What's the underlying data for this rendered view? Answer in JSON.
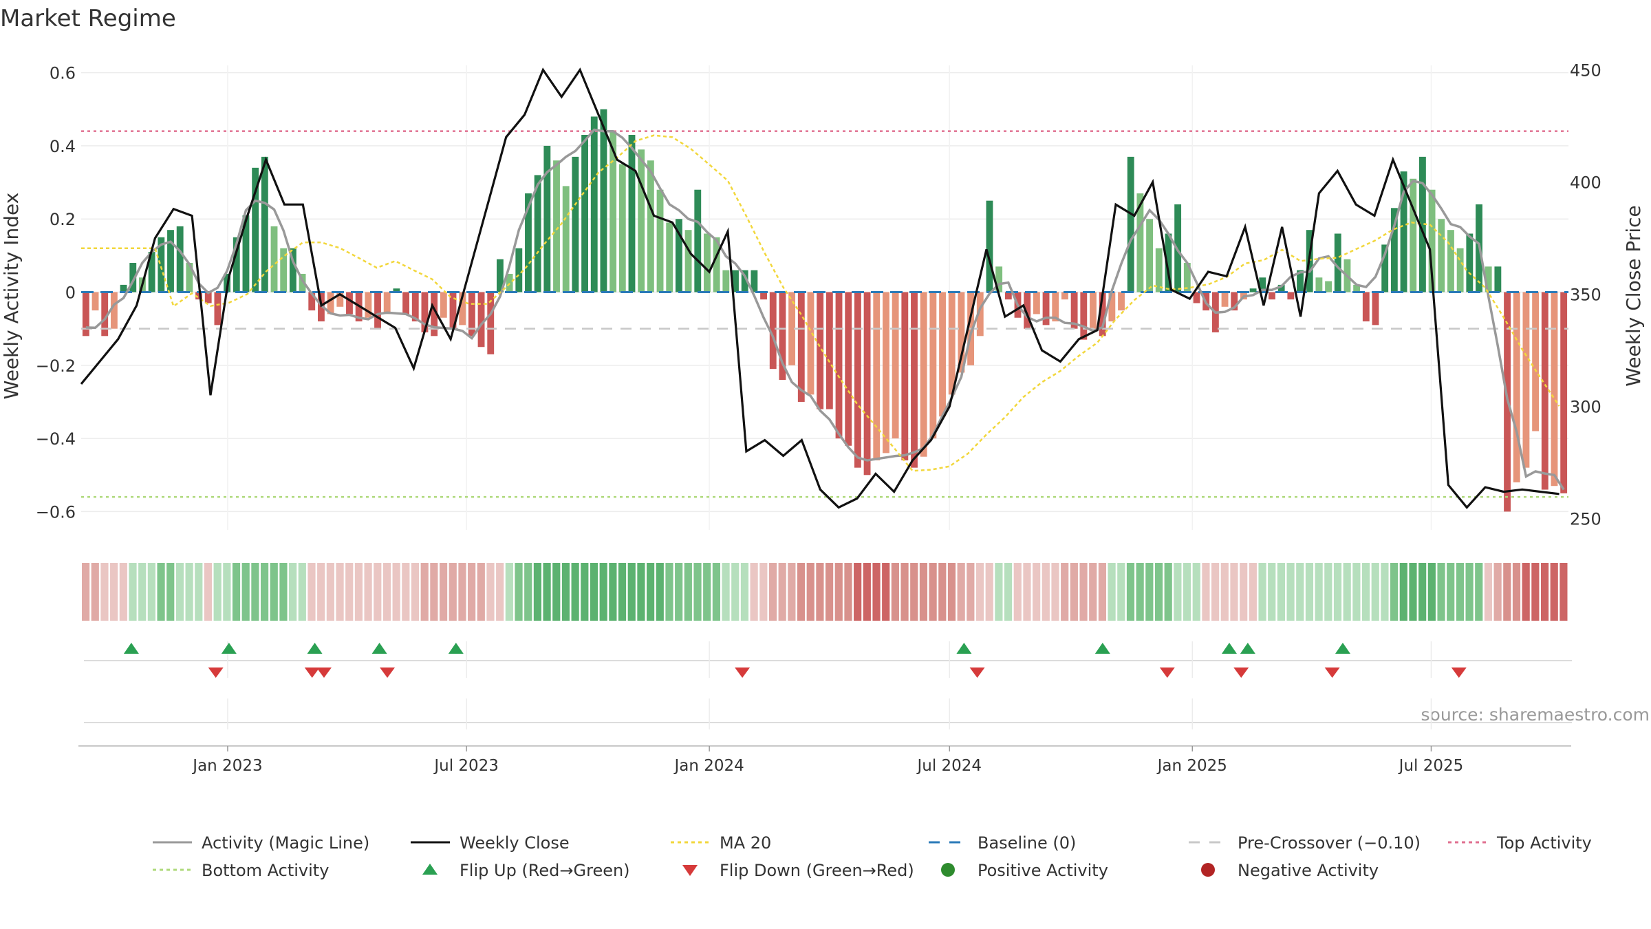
{
  "page": {
    "title": "Market Regime",
    "source": "source: sharemaestro.com"
  },
  "chart_data": {
    "type": "bar",
    "title": "Market Regime",
    "ylabel_left": "Weekly Activity Index",
    "ylabel_right": "Weekly Close Price",
    "ylim_left": [
      -0.65,
      0.62
    ],
    "ylim_right": [
      245,
      452
    ],
    "yticks_left": [
      "0.6",
      "0.4",
      "0.2",
      "0",
      "−0.2",
      "−0.4",
      "−0.6"
    ],
    "yticks_right": [
      "450",
      "400",
      "350",
      "300",
      "250"
    ],
    "x_tick_labels": [
      "Jan 2023",
      "Jul 2023",
      "Jan 2024",
      "Jul 2024",
      "Jan 2025",
      "Jul 2025"
    ],
    "x_tick_dates": [
      "2023-01-01",
      "2023-07-01",
      "2024-01-01",
      "2024-07-01",
      "2025-01-01",
      "2025-07-01"
    ],
    "date_range": [
      "2022-09-12",
      "2025-10-13"
    ],
    "weekly_close": [
      {
        "date": "2022-09-12",
        "value": 310
      },
      {
        "date": "2022-09-26",
        "value": 320
      },
      {
        "date": "2022-10-10",
        "value": 330
      },
      {
        "date": "2022-10-24",
        "value": 345
      },
      {
        "date": "2022-11-07",
        "value": 375
      },
      {
        "date": "2022-11-21",
        "value": 388
      },
      {
        "date": "2022-12-05",
        "value": 385
      },
      {
        "date": "2022-12-19",
        "value": 305
      },
      {
        "date": "2023-01-02",
        "value": 358
      },
      {
        "date": "2023-01-16",
        "value": 385
      },
      {
        "date": "2023-01-30",
        "value": 410
      },
      {
        "date": "2023-02-13",
        "value": 390
      },
      {
        "date": "2023-02-27",
        "value": 390
      },
      {
        "date": "2023-03-13",
        "value": 345
      },
      {
        "date": "2023-03-27",
        "value": 350
      },
      {
        "date": "2023-04-10",
        "value": 345
      },
      {
        "date": "2023-04-24",
        "value": 340
      },
      {
        "date": "2023-05-08",
        "value": 335
      },
      {
        "date": "2023-05-22",
        "value": 317
      },
      {
        "date": "2023-06-05",
        "value": 345
      },
      {
        "date": "2023-06-19",
        "value": 330
      },
      {
        "date": "2023-07-03",
        "value": 360
      },
      {
        "date": "2023-07-17",
        "value": 390
      },
      {
        "date": "2023-07-31",
        "value": 420
      },
      {
        "date": "2023-08-14",
        "value": 430
      },
      {
        "date": "2023-08-28",
        "value": 450
      },
      {
        "date": "2023-09-11",
        "value": 438
      },
      {
        "date": "2023-09-25",
        "value": 450
      },
      {
        "date": "2023-10-09",
        "value": 430
      },
      {
        "date": "2023-10-23",
        "value": 410
      },
      {
        "date": "2023-11-06",
        "value": 405
      },
      {
        "date": "2023-11-20",
        "value": 385
      },
      {
        "date": "2023-12-04",
        "value": 382
      },
      {
        "date": "2023-12-18",
        "value": 368
      },
      {
        "date": "2024-01-01",
        "value": 360
      },
      {
        "date": "2024-01-15",
        "value": 378
      },
      {
        "date": "2024-01-29",
        "value": 280
      },
      {
        "date": "2024-02-12",
        "value": 285
      },
      {
        "date": "2024-02-26",
        "value": 278
      },
      {
        "date": "2024-03-11",
        "value": 285
      },
      {
        "date": "2024-03-25",
        "value": 263
      },
      {
        "date": "2024-04-08",
        "value": 255
      },
      {
        "date": "2024-04-22",
        "value": 259
      },
      {
        "date": "2024-05-06",
        "value": 270
      },
      {
        "date": "2024-05-20",
        "value": 262
      },
      {
        "date": "2024-06-03",
        "value": 276
      },
      {
        "date": "2024-06-17",
        "value": 285
      },
      {
        "date": "2024-07-01",
        "value": 300
      },
      {
        "date": "2024-07-15",
        "value": 335
      },
      {
        "date": "2024-07-29",
        "value": 370
      },
      {
        "date": "2024-08-12",
        "value": 340
      },
      {
        "date": "2024-08-26",
        "value": 345
      },
      {
        "date": "2024-09-09",
        "value": 325
      },
      {
        "date": "2024-09-23",
        "value": 320
      },
      {
        "date": "2024-10-07",
        "value": 330
      },
      {
        "date": "2024-10-21",
        "value": 334
      },
      {
        "date": "2024-11-04",
        "value": 390
      },
      {
        "date": "2024-11-18",
        "value": 385
      },
      {
        "date": "2024-12-02",
        "value": 400
      },
      {
        "date": "2024-12-16",
        "value": 352
      },
      {
        "date": "2024-12-30",
        "value": 348
      },
      {
        "date": "2025-01-13",
        "value": 360
      },
      {
        "date": "2025-01-27",
        "value": 358
      },
      {
        "date": "2025-02-10",
        "value": 380
      },
      {
        "date": "2025-02-24",
        "value": 345
      },
      {
        "date": "2025-03-10",
        "value": 380
      },
      {
        "date": "2025-03-24",
        "value": 340
      },
      {
        "date": "2025-04-07",
        "value": 395
      },
      {
        "date": "2025-04-21",
        "value": 405
      },
      {
        "date": "2025-05-05",
        "value": 390
      },
      {
        "date": "2025-05-19",
        "value": 385
      },
      {
        "date": "2025-06-02",
        "value": 410
      },
      {
        "date": "2025-06-16",
        "value": 390
      },
      {
        "date": "2025-06-30",
        "value": 370
      },
      {
        "date": "2025-07-14",
        "value": 265
      },
      {
        "date": "2025-07-28",
        "value": 255
      },
      {
        "date": "2025-08-11",
        "value": 264
      },
      {
        "date": "2025-08-25",
        "value": 262
      },
      {
        "date": "2025-09-08",
        "value": 263
      },
      {
        "date": "2025-09-22",
        "value": 262
      },
      {
        "date": "2025-10-06",
        "value": 261
      }
    ],
    "activity_weeks": [
      -0.12,
      -0.05,
      -0.12,
      -0.1,
      0.02,
      0.08,
      0.04,
      0.11,
      0.15,
      0.17,
      0.18,
      0.08,
      -0.02,
      -0.03,
      -0.09,
      0.05,
      0.15,
      0.21,
      0.34,
      0.37,
      0.18,
      0.12,
      0.12,
      0.05,
      -0.05,
      -0.08,
      -0.06,
      -0.04,
      -0.06,
      -0.08,
      -0.07,
      -0.1,
      -0.06,
      0.01,
      -0.06,
      -0.08,
      -0.11,
      -0.12,
      -0.07,
      -0.1,
      -0.09,
      -0.12,
      -0.15,
      -0.17,
      0.09,
      0.05,
      0.12,
      0.27,
      0.32,
      0.4,
      0.36,
      0.29,
      0.37,
      0.43,
      0.48,
      0.5,
      0.44,
      0.35,
      0.43,
      0.39,
      0.36,
      0.28,
      0.19,
      0.2,
      0.17,
      0.28,
      0.16,
      0.15,
      0.06,
      0.06,
      0.06,
      0.06,
      -0.02,
      -0.21,
      -0.24,
      -0.2,
      -0.3,
      -0.28,
      -0.32,
      -0.32,
      -0.4,
      -0.42,
      -0.48,
      -0.5,
      -0.46,
      -0.44,
      -0.4,
      -0.46,
      -0.48,
      -0.45,
      -0.4,
      -0.34,
      -0.28,
      -0.22,
      -0.2,
      -0.12,
      0.25,
      0.07,
      -0.02,
      -0.07,
      -0.1,
      -0.06,
      -0.09,
      -0.08,
      -0.02,
      -0.1,
      -0.13,
      -0.1,
      -0.12,
      -0.08,
      -0.05,
      0.37,
      0.27,
      0.2,
      0.12,
      0.16,
      0.24,
      0.08,
      -0.03,
      -0.05,
      -0.11,
      -0.04,
      -0.05,
      -0.02,
      0.01,
      0.04,
      -0.02,
      0.02,
      -0.02,
      0.06,
      0.17,
      0.04,
      0.03,
      0.16,
      0.09,
      0.02,
      -0.08,
      -0.09,
      0.13,
      0.23,
      0.33,
      0.31,
      0.37,
      0.28,
      0.2,
      0.17,
      0.12,
      0.16,
      0.24,
      0.07,
      0.07,
      -0.6,
      -0.52,
      -0.48,
      -0.38,
      -0.54,
      -0.53,
      -0.55
    ],
    "series": [
      {
        "name": "Activity (Magic Line)",
        "color": "#999999"
      },
      {
        "name": "Weekly Close",
        "color": "#111111"
      },
      {
        "name": "MA 20",
        "color": "#f2d73c"
      }
    ],
    "reference_lines": [
      {
        "name": "Top Activity",
        "value": 0.44,
        "color": "#e07090"
      },
      {
        "name": "Bottom Activity",
        "value": -0.56,
        "color": "#aed97a"
      },
      {
        "name": "Pre-Crossover (−0.10)",
        "value": -0.1,
        "color": "#c8c8c8"
      },
      {
        "name": "Baseline (0)",
        "value": 0,
        "color": "#2a7ab8"
      }
    ],
    "flip_up_dates": [
      "2022-10-20",
      "2023-01-02",
      "2023-03-08",
      "2023-04-26",
      "2023-06-23",
      "2024-07-12",
      "2024-10-25",
      "2025-01-29",
      "2025-02-12",
      "2025-04-25"
    ],
    "flip_down_dates": [
      "2022-12-23",
      "2023-03-06",
      "2023-03-15",
      "2023-05-02",
      "2024-01-26",
      "2024-07-22",
      "2024-12-13",
      "2025-02-07",
      "2025-04-17",
      "2025-07-22"
    ],
    "legend": [
      {
        "label": "Activity (Magic Line)",
        "symbol": "line",
        "color": "#999999"
      },
      {
        "label": "Weekly Close",
        "symbol": "line",
        "color": "#111111"
      },
      {
        "label": "MA 20",
        "symbol": "dotted",
        "color": "#f2d73c"
      },
      {
        "label": "Baseline (0)",
        "symbol": "dashed",
        "color": "#2a7ab8"
      },
      {
        "label": "Pre-Crossover (−0.10)",
        "symbol": "dashed",
        "color": "#c8c8c8"
      },
      {
        "label": "Top Activity",
        "symbol": "dotted",
        "color": "#e07090"
      },
      {
        "label": "Bottom Activity",
        "symbol": "dotted",
        "color": "#aed97a"
      },
      {
        "label": "Flip Up (Red→Green)",
        "symbol": "triangle-up",
        "color": "#2aa052"
      },
      {
        "label": "Flip Down (Green→Red)",
        "symbol": "triangle-down",
        "color": "#d63a3a"
      },
      {
        "label": "Positive Activity",
        "symbol": "dot",
        "color": "#2e8b2e"
      },
      {
        "label": "Negative Activity",
        "symbol": "dot",
        "color": "#b22424"
      }
    ],
    "grid": true,
    "legend_position": "bottom"
  }
}
